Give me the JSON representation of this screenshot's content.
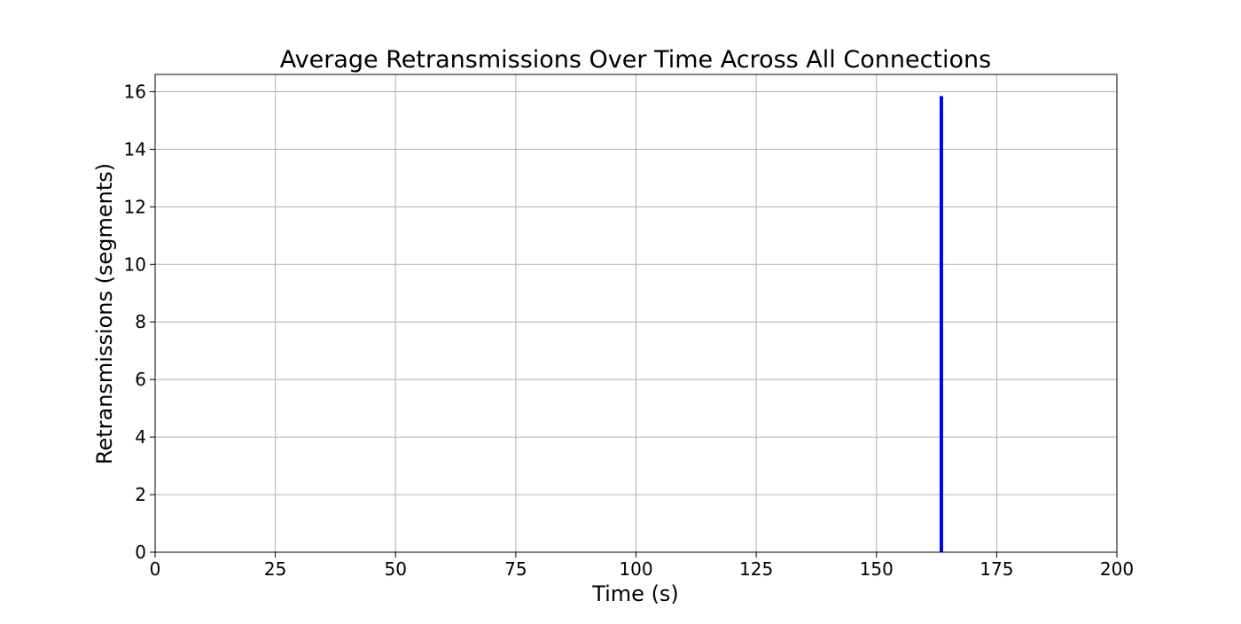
{
  "chart_data": {
    "type": "bar",
    "title": "Average Retransmissions Over Time Across All Connections",
    "xlabel": "Time (s)",
    "ylabel": "Retransmissions (segments)",
    "xlim": [
      0,
      200
    ],
    "ylim": [
      0,
      16.6
    ],
    "xticks": [
      0,
      25,
      50,
      75,
      100,
      125,
      150,
      175,
      200
    ],
    "yticks": [
      0,
      2,
      4,
      6,
      8,
      10,
      12,
      14,
      16
    ],
    "grid": true,
    "series": [
      {
        "x": [
          163.5
        ],
        "values": [
          15.85
        ],
        "color": "#0000ff"
      }
    ]
  }
}
